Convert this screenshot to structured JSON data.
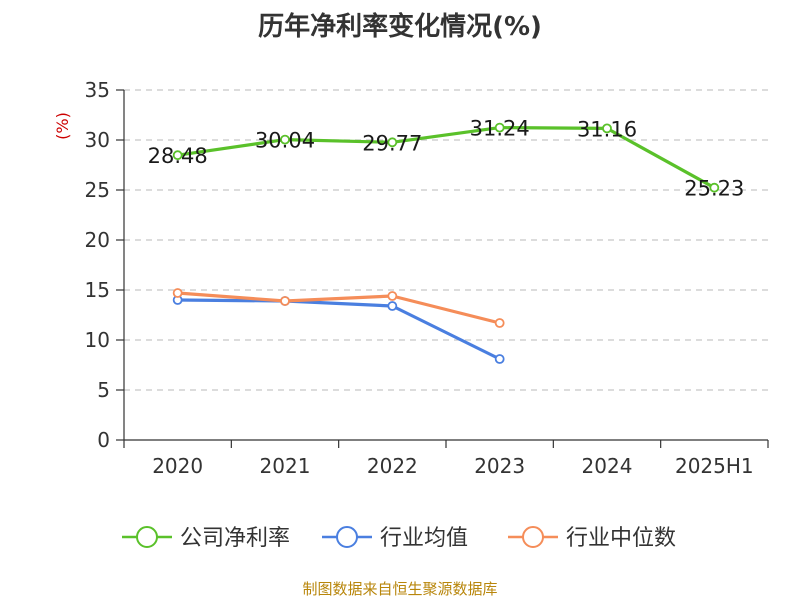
{
  "title": "历年净利率变化情况(%)",
  "source": "制图数据来自恒生聚源数据库",
  "chart_data": {
    "type": "line",
    "title": "历年净利率变化情况(%)",
    "ylabel": "(%)",
    "xlabel": "",
    "categories": [
      "2020",
      "2021",
      "2022",
      "2023",
      "2024",
      "2025H1"
    ],
    "ylim": [
      0,
      35
    ],
    "yticks": [
      0,
      5,
      10,
      15,
      20,
      25,
      30,
      35
    ],
    "grid": true,
    "legend_position": "bottom",
    "series": [
      {
        "name": "公司净利率",
        "color": "#5ac12a",
        "values": [
          28.48,
          30.04,
          29.77,
          31.24,
          31.16,
          25.23
        ],
        "show_labels": true
      },
      {
        "name": "行业均值",
        "color": "#4a7fe0",
        "values": [
          14.0,
          13.9,
          13.4,
          8.1,
          null,
          null
        ],
        "show_labels": false
      },
      {
        "name": "行业中位数",
        "color": "#f58d59",
        "values": [
          14.7,
          13.9,
          14.4,
          11.7,
          null,
          null
        ],
        "show_labels": false
      }
    ]
  }
}
